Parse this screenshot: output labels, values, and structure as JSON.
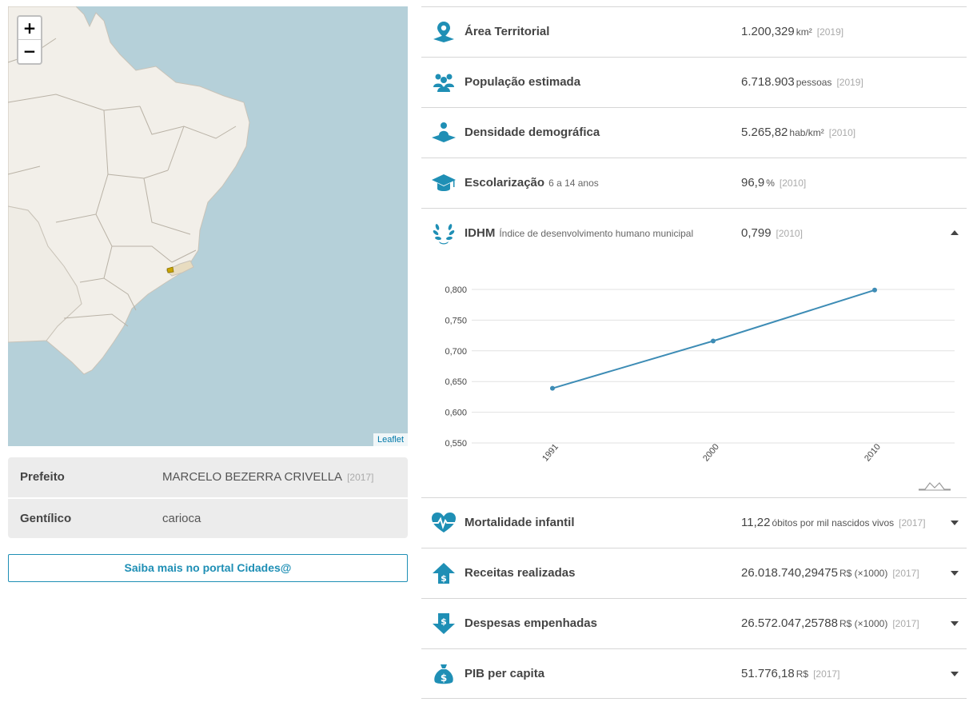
{
  "map": {
    "zoom_in_label": "+",
    "zoom_out_label": "−",
    "attribution": "Leaflet",
    "colors": {
      "water": "#b5d0d9",
      "land": "#f2efe9",
      "highlight": "#c8a400"
    }
  },
  "info": {
    "rows": [
      {
        "label": "Prefeito",
        "value": "MARCELO BEZERRA CRIVELLA",
        "year": "[2017]"
      },
      {
        "label": "Gentílico",
        "value": "carioca",
        "year": ""
      }
    ],
    "portal_button": "Saiba mais no portal Cidades@"
  },
  "indicators": [
    {
      "icon": "map-pin-icon",
      "label": "Área Territorial",
      "sub": "",
      "value": "1.200,329",
      "unit": "km²",
      "year": "[2019]"
    },
    {
      "icon": "people-icon",
      "label": "População estimada",
      "sub": "",
      "value": "6.718.903",
      "unit": "pessoas",
      "year": "[2019]"
    },
    {
      "icon": "density-icon",
      "label": "Densidade demográfica",
      "sub": "",
      "value": "5.265,82",
      "unit": "hab/km²",
      "year": "[2010]"
    },
    {
      "icon": "graduation-cap-icon",
      "label": "Escolarização",
      "sub": "6 a 14 anos",
      "value": "96,9",
      "unit": "%",
      "year": "[2010]"
    },
    {
      "icon": "laurel-icon",
      "label": "IDHM",
      "sub": "Índice de desenvolvimento humano municipal",
      "value": "0,799",
      "unit": "",
      "year": "[2010]"
    },
    {
      "icon": "heart-pulse-icon",
      "label": "Mortalidade infantil",
      "sub": "",
      "value": "11,22",
      "unit": "óbitos por mil nascidos vivos",
      "year": "[2017]"
    },
    {
      "icon": "money-up-icon",
      "label": "Receitas realizadas",
      "sub": "",
      "value": "26.018.740,29475",
      "unit": "R$ (×1000)",
      "year": "[2017]"
    },
    {
      "icon": "money-down-icon",
      "label": "Despesas empenhadas",
      "sub": "",
      "value": "26.572.047,25788",
      "unit": "R$ (×1000)",
      "year": "[2017]"
    },
    {
      "icon": "money-bag-icon",
      "label": "PIB per capita",
      "sub": "",
      "value": "51.776,18",
      "unit": "R$",
      "year": "[2017]"
    }
  ],
  "chart_data": {
    "type": "line",
    "x": [
      "1991",
      "2000",
      "2010"
    ],
    "series": [
      {
        "values": [
          0.639,
          0.716,
          0.799
        ]
      }
    ],
    "y_ticks": [
      "0,550",
      "0,600",
      "0,650",
      "0,700",
      "0,750",
      "0,800"
    ],
    "ylim": [
      0.55,
      0.8
    ],
    "grid": true,
    "color": "#3d8cb5"
  },
  "accent_color": "#1f8fb5"
}
